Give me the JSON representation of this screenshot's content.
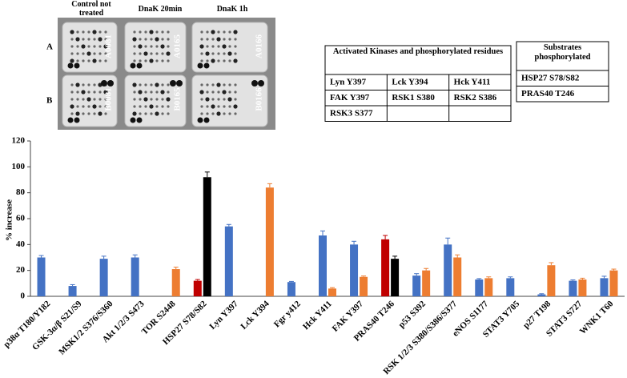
{
  "blot": {
    "column_labels": [
      "Control not treated",
      "DnaK 20min",
      "DnaK 1h"
    ],
    "row_labels": [
      "A",
      "B"
    ],
    "membrane_labels": [
      "A0081",
      "A0165",
      "A0166",
      "B0081",
      "B0165",
      "B0166"
    ]
  },
  "tables": [
    {
      "header": "Activated Kinases and phosphorylated residues",
      "rows": [
        [
          "Lyn Y397",
          "Lck Y394",
          "Hck Y411"
        ],
        [
          "FAK Y397",
          "RSK1 S380",
          "RSK2 S386"
        ],
        [
          "RSK3 S377"
        ]
      ]
    },
    {
      "header": "Substrates phosphorylated",
      "rows": [
        [
          "HSP27 S78/S82"
        ],
        [
          "PRAS40 T246"
        ]
      ]
    }
  ],
  "chart_data": {
    "type": "bar",
    "y_label": "% increase",
    "categories": [
      "p38α T180/Y182",
      "GSK-3α/β S21/S9",
      "MSK1/2 S376/S360",
      "Akt 1/2/3 S473",
      "TOR S2448",
      "HSP27 S78/S82",
      "Lyn Y397",
      "Lck Y394",
      "Fgr y412",
      "Hck Y411",
      "FAK Y397",
      "PRAS40 T246",
      "p53 S392",
      "RSK 1/2/3 S380/S386/S377",
      "eNOS S1177",
      "STAT3 Y705",
      "p27 T198",
      "STAT3 S727",
      "WNK1 T60"
    ],
    "series": [
      {
        "color": "#4472c4",
        "values": [
          30,
          8,
          29,
          30,
          null,
          null,
          54,
          null,
          11,
          47,
          40,
          null,
          16,
          40,
          13,
          14,
          1.5,
          12,
          14
        ],
        "errors": [
          1.5,
          1,
          2,
          2,
          null,
          null,
          1.5,
          null,
          0.5,
          3.5,
          2.5,
          null,
          1.5,
          5,
          0.7,
          1,
          0.5,
          0.7,
          1.5
        ]
      },
      {
        "color": "#ed7d31",
        "values": [
          null,
          null,
          null,
          null,
          21,
          null,
          null,
          84,
          null,
          6,
          15,
          null,
          20,
          30,
          14,
          null,
          24,
          13,
          20
        ],
        "errors": [
          null,
          null,
          null,
          null,
          1.5,
          null,
          null,
          3,
          null,
          0.7,
          0.7,
          null,
          1.5,
          2,
          1,
          null,
          2,
          1,
          1
        ]
      },
      {
        "color": "#c00000",
        "values": [
          null,
          null,
          null,
          null,
          null,
          12,
          null,
          null,
          null,
          null,
          null,
          44,
          null,
          null,
          null,
          null,
          null,
          null,
          null
        ],
        "errors": [
          null,
          null,
          null,
          null,
          null,
          1,
          null,
          null,
          null,
          null,
          null,
          3,
          null,
          null,
          null,
          null,
          null,
          null,
          null
        ]
      },
      {
        "color": "#000000",
        "values": [
          null,
          null,
          null,
          null,
          null,
          92,
          null,
          null,
          null,
          null,
          null,
          29,
          null,
          null,
          null,
          null,
          null,
          null,
          null
        ],
        "errors": [
          null,
          null,
          null,
          null,
          null,
          4,
          null,
          null,
          null,
          null,
          null,
          2,
          null,
          null,
          null,
          null,
          null,
          null,
          null
        ]
      }
    ],
    "ylim": [
      0,
      120
    ],
    "yticks": [
      0,
      20,
      40,
      60,
      80,
      100,
      120
    ],
    "grid": false
  }
}
